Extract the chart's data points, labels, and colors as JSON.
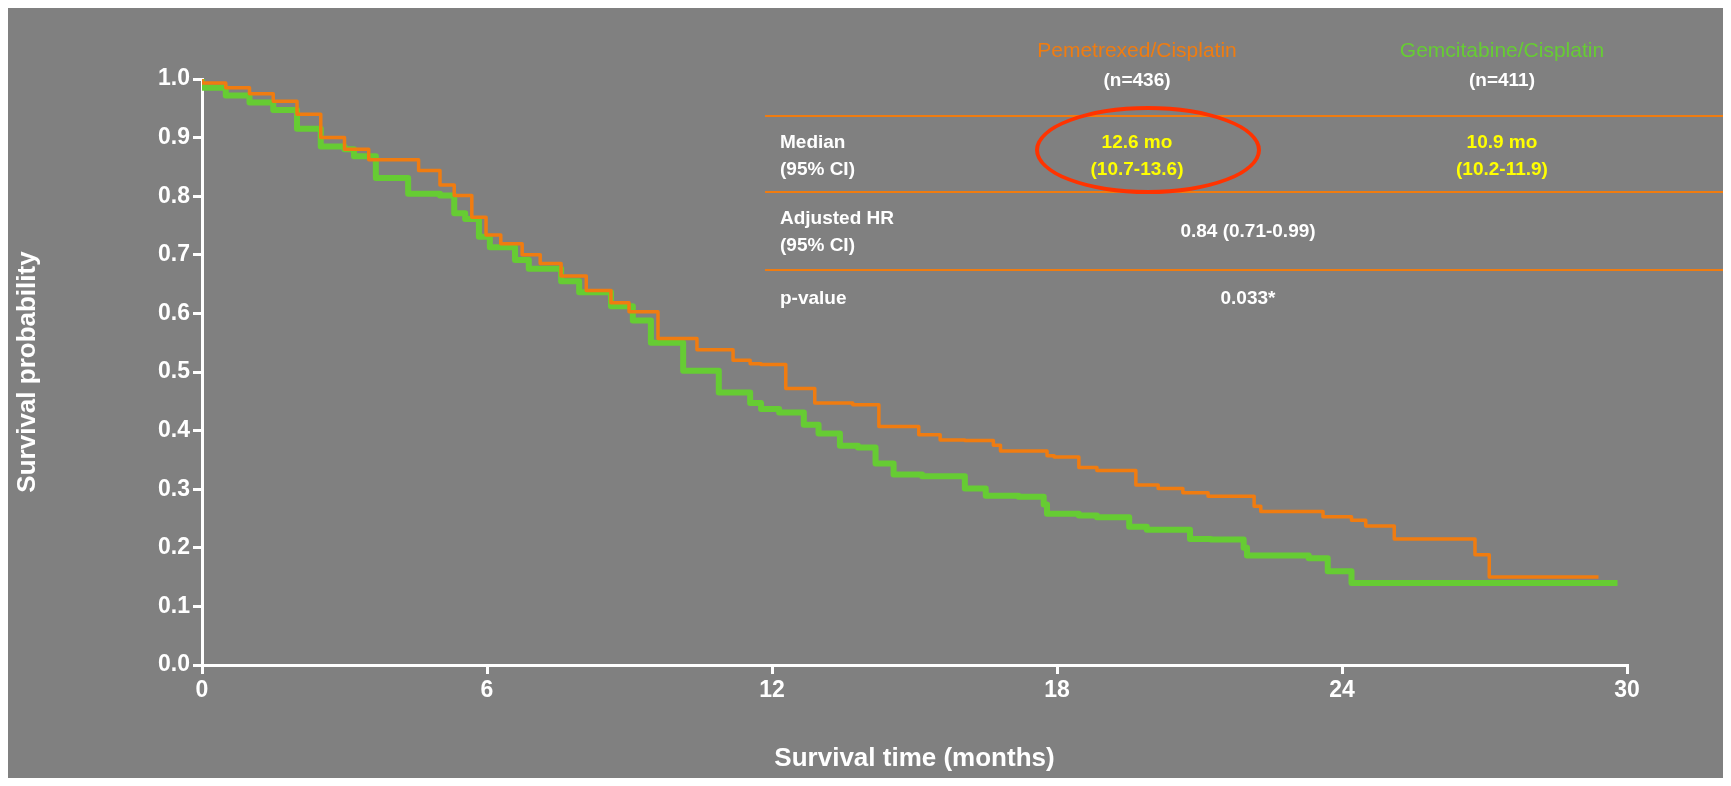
{
  "chart_data": {
    "type": "step",
    "xlabel": "Survival time (months)",
    "ylabel": "Survival probability",
    "xlim": [
      0,
      30
    ],
    "xticks": [
      0,
      6,
      12,
      18,
      24,
      30
    ],
    "ylim": [
      0,
      1
    ],
    "yticks": [
      {
        "value": 0,
        "label": "0.0"
      },
      0.1,
      0.2,
      0.3,
      0.4,
      0.5,
      0.6,
      0.7,
      0.8,
      0.9,
      {
        "value": 1,
        "label": "1.0"
      }
    ],
    "grid": false,
    "legend": "top right",
    "series": [
      {
        "name": "Pemetrexed/Cisplatin",
        "color": "#f07c10",
        "x": [
          0,
          0.5,
          1,
          1.5,
          2,
          2.5,
          3,
          3.51,
          4.56,
          5.01,
          5.31,
          5.68,
          5.98,
          6.29,
          6.74,
          7.12,
          7.56,
          8.09,
          8.61,
          8.99,
          9.6,
          10.42,
          11.18,
          11.54,
          11.77,
          12.29,
          12.9,
          13.7,
          14.25,
          15.09,
          15.54,
          16.06,
          16.66,
          16.81,
          17.79,
          17.94,
          18.46,
          18.84,
          19.66,
          20.13,
          20.65,
          21.18,
          22.15,
          22.29,
          23.6,
          24.2,
          24.5,
          25.1,
          26.8,
          27.1,
          28.1,
          29.4
        ],
        "values": [
          1,
          0.993,
          0.985,
          0.975,
          0.962,
          0.94,
          0.9,
          0.88,
          0.862,
          0.844,
          0.819,
          0.801,
          0.764,
          0.734,
          0.719,
          0.7,
          0.685,
          0.664,
          0.639,
          0.618,
          0.603,
          0.557,
          0.538,
          0.52,
          0.514,
          0.513,
          0.472,
          0.447,
          0.444,
          0.407,
          0.393,
          0.384,
          0.383,
          0.375,
          0.365,
          0.357,
          0.355,
          0.337,
          0.332,
          0.307,
          0.301,
          0.294,
          0.288,
          0.271,
          0.262,
          0.253,
          0.247,
          0.237,
          0.215,
          0.188,
          0.15,
          0.15
        ]
      },
      {
        "name": "Gemcitabine/Cisplatin",
        "color": "#66cc33",
        "x": [
          0,
          0.5,
          1,
          1.5,
          2,
          2.5,
          3,
          3.2,
          3.66,
          4.34,
          5.01,
          5.31,
          5.54,
          5.83,
          6.06,
          6.59,
          6.88,
          7.56,
          7.94,
          8.61,
          9.07,
          9.45,
          10.13,
          10.88,
          11.54,
          11.77,
          12.15,
          12.67,
          12.98,
          13.43,
          13.81,
          14.18,
          14.56,
          15.16,
          16.06,
          16.5,
          17.19,
          17.72,
          17.79,
          18.46,
          18.84,
          19.52,
          19.89,
          20.8,
          21.24,
          21.93,
          22,
          23.3,
          23.7,
          24.2,
          27,
          29.8
        ],
        "values": [
          1,
          0.985,
          0.972,
          0.96,
          0.947,
          0.915,
          0.885,
          0.88,
          0.868,
          0.831,
          0.804,
          0.801,
          0.771,
          0.761,
          0.731,
          0.713,
          0.691,
          0.676,
          0.655,
          0.636,
          0.612,
          0.588,
          0.55,
          0.502,
          0.465,
          0.447,
          0.437,
          0.431,
          0.41,
          0.395,
          0.374,
          0.371,
          0.344,
          0.325,
          0.322,
          0.301,
          0.289,
          0.287,
          0.274,
          0.258,
          0.255,
          0.252,
          0.236,
          0.231,
          0.215,
          0.214,
          0.2,
          0.187,
          0.182,
          0.16,
          0.14,
          0.14
        ]
      }
    ],
    "annotations": [
      "(n=436)",
      "(n=411)",
      "Median\n(95% CI)",
      "12.6 mo\n(10.7-13.6)",
      "10.9 mo\n(10.2-11.9)",
      "Adjusted HR\n(95% CI)",
      "0.84 (0.71-0.99)",
      "p-value",
      "0.033*"
    ]
  }
}
